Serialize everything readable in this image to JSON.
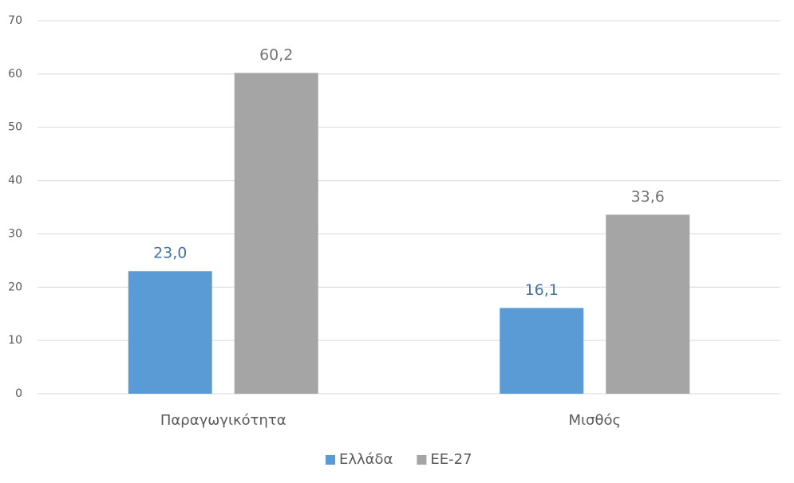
{
  "chart_data": {
    "type": "bar",
    "categories": [
      "Παραγωγικότητα",
      "Μισθός"
    ],
    "series": [
      {
        "name": "Ελλάδα",
        "color": "#5b9bd5",
        "values": [
          23.0,
          16.1
        ],
        "value_labels": [
          "23,0",
          "16,1"
        ]
      },
      {
        "name": "ΕΕ-27",
        "color": "#a5a5a5",
        "values": [
          60.2,
          33.6
        ],
        "value_labels": [
          "60,2",
          "33,6"
        ]
      }
    ],
    "ylim": [
      0,
      70
    ],
    "yticks": [
      0,
      10,
      20,
      30,
      40,
      50,
      60,
      70
    ],
    "grid": true,
    "legend": "bottom"
  }
}
